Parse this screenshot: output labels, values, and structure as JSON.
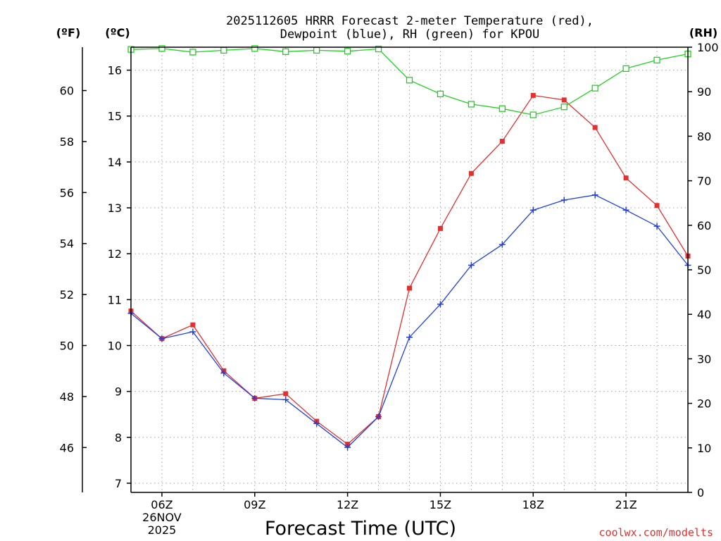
{
  "chart_data": {
    "type": "line",
    "title_line1": "2025112605 HRRR Forecast 2-meter Temperature (red),",
    "title_line2": "Dewpoint (blue), RH (green) for KPOU",
    "xlabel": "Forecast Time (UTC)",
    "credit": "coolwx.com/modelts",
    "unit_labels": {
      "fahrenheit": "(ºF)",
      "celsius": "(ºC)",
      "rh": "(RH)"
    },
    "x_range": [
      5,
      23
    ],
    "x": [
      5,
      6,
      7,
      8,
      9,
      10,
      11,
      12,
      13,
      14,
      15,
      16,
      17,
      18,
      19,
      20,
      21,
      22,
      23
    ],
    "x_ticks": [
      {
        "hour": 6,
        "lines": [
          "06Z",
          "26NOV",
          "2025"
        ]
      },
      {
        "hour": 9,
        "lines": [
          "09Z"
        ]
      },
      {
        "hour": 12,
        "lines": [
          "12Z"
        ]
      },
      {
        "hour": 15,
        "lines": [
          "15Z"
        ]
      },
      {
        "hour": 18,
        "lines": [
          "18Z"
        ]
      },
      {
        "hour": 21,
        "lines": [
          "21Z"
        ]
      }
    ],
    "y_celsius": {
      "range": [
        6.8,
        16.5
      ],
      "ticks": [
        "7",
        "8",
        "9",
        "10",
        "11",
        "12",
        "13",
        "14",
        "15",
        "16"
      ]
    },
    "y_fahrenheit": {
      "ticks": [
        "46",
        "48",
        "50",
        "52",
        "54",
        "56",
        "58",
        "60"
      ]
    },
    "y_rh": {
      "range": [
        0,
        100
      ],
      "ticks": [
        "0",
        "10",
        "20",
        "30",
        "40",
        "50",
        "60",
        "70",
        "80",
        "90",
        "100"
      ]
    },
    "series": [
      {
        "name": "Temperature",
        "axis": "celsius",
        "color": "#e03030",
        "marker": "filled-square",
        "values": [
          10.75,
          10.15,
          10.45,
          9.45,
          8.85,
          8.95,
          8.35,
          7.85,
          8.45,
          11.25,
          12.55,
          13.75,
          14.45,
          15.45,
          15.35,
          14.75,
          13.65,
          13.05,
          11.95
        ]
      },
      {
        "name": "Dewpoint",
        "axis": "celsius",
        "color": "#2040e0",
        "marker": "plus",
        "values": [
          10.7,
          10.15,
          10.3,
          9.4,
          8.85,
          8.82,
          8.3,
          7.78,
          8.45,
          10.18,
          10.9,
          11.75,
          12.2,
          12.95,
          13.17,
          13.28,
          12.95,
          12.6,
          11.75
        ]
      },
      {
        "name": "RH",
        "axis": "rh",
        "color": "#20d020",
        "marker": "open-square",
        "values": [
          99.5,
          99.7,
          98.9,
          99.3,
          99.7,
          99.0,
          99.3,
          99.1,
          99.6,
          92.6,
          89.5,
          87.2,
          86.2,
          84.8,
          86.6,
          90.8,
          95.2,
          97.1,
          98.5
        ]
      }
    ]
  }
}
